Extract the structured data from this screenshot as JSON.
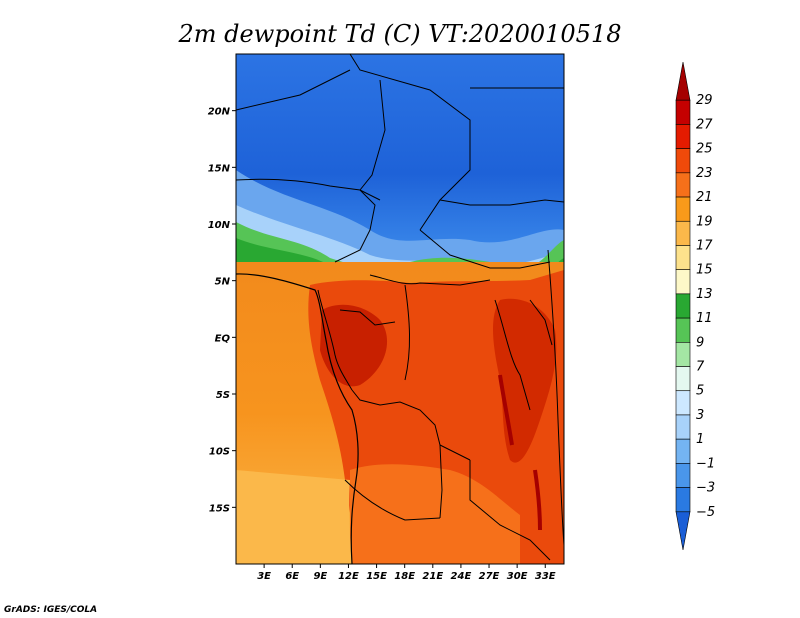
{
  "title": "2m dewpoint Td (C) VT:2020010518",
  "credit": "GrADS: IGES/COLA",
  "map": {
    "lon_range": [
      0,
      35
    ],
    "lat_range": [
      -20,
      25
    ],
    "xticks": [
      {
        "value": 3,
        "label": "3E"
      },
      {
        "value": 6,
        "label": "6E"
      },
      {
        "value": 9,
        "label": "9E"
      },
      {
        "value": 12,
        "label": "12E"
      },
      {
        "value": 15,
        "label": "15E"
      },
      {
        "value": 18,
        "label": "18E"
      },
      {
        "value": 21,
        "label": "21E"
      },
      {
        "value": 24,
        "label": "24E"
      },
      {
        "value": 27,
        "label": "27E"
      },
      {
        "value": 30,
        "label": "30E"
      },
      {
        "value": 33,
        "label": "33E"
      }
    ],
    "yticks": [
      {
        "value": 20,
        "label": "20N"
      },
      {
        "value": 15,
        "label": "15N"
      },
      {
        "value": 10,
        "label": "10N"
      },
      {
        "value": 5,
        "label": "5N"
      },
      {
        "value": 0,
        "label": "EQ"
      },
      {
        "value": -5,
        "label": "5S"
      },
      {
        "value": -10,
        "label": "10S"
      },
      {
        "value": -15,
        "label": "15S"
      }
    ]
  },
  "colorbar": {
    "labels": [
      "29",
      "27",
      "25",
      "23",
      "21",
      "19",
      "17",
      "15",
      "13",
      "11",
      "9",
      "7",
      "5",
      "3",
      "1",
      "−1",
      "−3",
      "−5"
    ],
    "colors": [
      "#a50000",
      "#c40000",
      "#e41b00",
      "#f04a0a",
      "#f6701a",
      "#f99a1a",
      "#fbb84a",
      "#fde28c",
      "#fdf8c8",
      "#29a832",
      "#56c456",
      "#a4e6a4",
      "#e4f8f0",
      "#cde8ff",
      "#a8d2fa",
      "#74b4f2",
      "#4a96ea",
      "#2a7ae2",
      "#1a5ed6"
    ]
  },
  "fields": {
    "land_dry_north": "#2a6ee0",
    "transition": "#56c456",
    "ocean_atlantic": "#f7901a",
    "ocean_south": "#fbb84a",
    "congo_basin": "#e8400a",
    "hot_core": "#c82000"
  }
}
